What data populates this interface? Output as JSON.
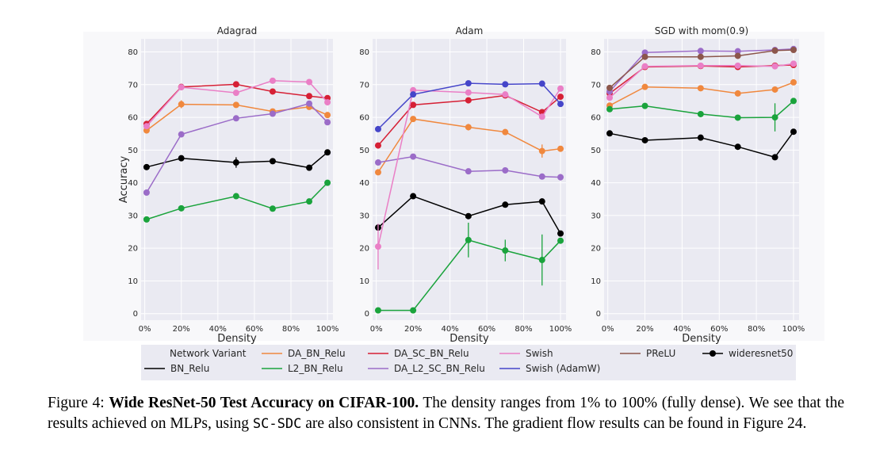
{
  "colors": {
    "BN_Relu": "#000000",
    "DA_BN_Relu": "#f0883e",
    "L2_BN_Relu": "#1aa33c",
    "DA_SC_BN_Relu": "#d62035",
    "DA_L2_SC_BN_Relu": "#9b6cc8",
    "Swish": "#ea7fc6",
    "Swish (AdamW)": "#4545c9",
    "PReLU": "#8c564b",
    "wideresnet50": "#000000"
  },
  "chart_data": [
    {
      "type": "line",
      "title": "Adagrad",
      "xlabel": "Density",
      "ylabel": "Accuracy",
      "x": [
        1,
        20,
        50,
        70,
        90,
        100
      ],
      "xticks": [
        "0%",
        "20%",
        "40%",
        "60%",
        "80%",
        "100%"
      ],
      "xtick_values": [
        0,
        20,
        40,
        60,
        80,
        100
      ],
      "yticks": [
        0,
        10,
        20,
        30,
        40,
        50,
        60,
        70,
        80
      ],
      "xlim": [
        -2,
        103
      ],
      "ylim": [
        -2,
        84
      ],
      "grid": true,
      "series": [
        {
          "name": "BN_Relu",
          "values": [
            44.8,
            47.5,
            46.2,
            46.6,
            44.6,
            49.3
          ],
          "err": [
            0,
            0,
            1.6,
            0,
            0,
            0
          ]
        },
        {
          "name": "DA_BN_Relu",
          "values": [
            56.0,
            64.0,
            63.8,
            61.8,
            63.2,
            60.7
          ],
          "err": [
            0,
            1.2,
            0,
            0,
            0,
            0
          ]
        },
        {
          "name": "L2_BN_Relu",
          "values": [
            28.8,
            32.2,
            35.9,
            32.1,
            34.3,
            40.0
          ],
          "err": [
            0,
            0,
            0,
            0,
            0,
            0
          ]
        },
        {
          "name": "DA_SC_BN_Relu",
          "values": [
            58.0,
            69.3,
            70.1,
            67.9,
            66.5,
            65.9
          ],
          "err": [
            0,
            0,
            0,
            0,
            0,
            0
          ]
        },
        {
          "name": "DA_L2_SC_BN_Relu",
          "values": [
            37.0,
            54.8,
            59.7,
            61.1,
            64.2,
            58.5
          ],
          "err": [
            0,
            0,
            0.9,
            0,
            0,
            0
          ]
        },
        {
          "name": "Swish",
          "values": [
            57.3,
            69.2,
            67.5,
            71.2,
            70.8,
            64.6
          ],
          "err": [
            0,
            0,
            0,
            0,
            0,
            0
          ]
        }
      ]
    },
    {
      "type": "line",
      "title": "Adam",
      "xlabel": "Density",
      "ylabel": "",
      "x": [
        1,
        20,
        50,
        70,
        90,
        100
      ],
      "xticks": [
        "0%",
        "20%",
        "40%",
        "60%",
        "80%",
        "100%"
      ],
      "xtick_values": [
        0,
        20,
        40,
        60,
        80,
        100
      ],
      "yticks": [
        0,
        10,
        20,
        30,
        40,
        50,
        60,
        70,
        80
      ],
      "xlim": [
        -2,
        103
      ],
      "ylim": [
        -2,
        84
      ],
      "grid": true,
      "series": [
        {
          "name": "BN_Relu",
          "values": [
            26.3,
            35.9,
            29.8,
            33.3,
            34.3,
            24.5
          ],
          "err": [
            0,
            0,
            0,
            0,
            0,
            0
          ]
        },
        {
          "name": "DA_BN_Relu",
          "values": [
            43.2,
            59.5,
            57.0,
            55.5,
            49.7,
            50.4
          ],
          "err": [
            0,
            0,
            1.0,
            0,
            2.0,
            0
          ]
        },
        {
          "name": "L2_BN_Relu",
          "values": [
            1.0,
            1.0,
            22.5,
            19.3,
            16.4,
            22.3
          ],
          "err": [
            0,
            0,
            5.3,
            3.3,
            7.8,
            0
          ]
        },
        {
          "name": "DA_SC_BN_Relu",
          "values": [
            51.4,
            63.8,
            65.2,
            66.7,
            61.6,
            66.3
          ],
          "err": [
            0,
            0,
            0,
            0,
            0,
            0
          ]
        },
        {
          "name": "DA_L2_SC_BN_Relu",
          "values": [
            46.2,
            48.0,
            43.5,
            43.8,
            41.9,
            41.7
          ],
          "err": [
            0,
            0,
            0,
            0,
            0,
            1.0
          ]
        },
        {
          "name": "Swish",
          "values": [
            20.5,
            68.3,
            67.6,
            67.0,
            60.2,
            68.8
          ],
          "err": [
            7.0,
            0,
            0,
            0,
            0,
            0
          ]
        },
        {
          "name": "Swish (AdamW)",
          "values": [
            56.4,
            67.0,
            70.4,
            70.1,
            70.3,
            64.1
          ],
          "err": [
            0,
            0,
            0,
            0,
            0,
            0
          ]
        }
      ]
    },
    {
      "type": "line",
      "title": "SGD with mom(0.9)",
      "xlabel": "Density",
      "ylabel": "",
      "x": [
        1,
        20,
        50,
        70,
        90,
        100
      ],
      "xticks": [
        "0%",
        "20%",
        "40%",
        "60%",
        "80%",
        "100%"
      ],
      "xtick_values": [
        0,
        20,
        40,
        60,
        80,
        100
      ],
      "yticks": [
        0,
        10,
        20,
        30,
        40,
        50,
        60,
        70,
        80
      ],
      "xlim": [
        -2,
        103
      ],
      "ylim": [
        -2,
        84
      ],
      "grid": true,
      "series": [
        {
          "name": "BN_Relu",
          "values": [
            55.1,
            53.0,
            53.8,
            51.0,
            47.8,
            55.6
          ],
          "err": [
            0,
            0,
            0,
            0,
            0,
            0
          ]
        },
        {
          "name": "DA_BN_Relu",
          "values": [
            63.6,
            69.3,
            68.9,
            67.3,
            68.5,
            70.7
          ],
          "err": [
            0,
            0,
            0,
            0,
            0,
            0
          ]
        },
        {
          "name": "L2_BN_Relu",
          "values": [
            62.5,
            63.5,
            61.0,
            59.9,
            60.0,
            65.0
          ],
          "err": [
            0,
            0,
            0,
            0,
            4.3,
            0
          ]
        },
        {
          "name": "DA_SC_BN_Relu",
          "values": [
            67.3,
            75.4,
            75.7,
            75.4,
            75.8,
            76.0
          ],
          "err": [
            0,
            0,
            0,
            0,
            0,
            0
          ]
        },
        {
          "name": "DA_L2_SC_BN_Relu",
          "values": [
            67.9,
            79.8,
            80.3,
            80.2,
            80.6,
            80.9
          ],
          "err": [
            0,
            0,
            0,
            0,
            0,
            0
          ]
        },
        {
          "name": "Swish",
          "values": [
            66.0,
            75.6,
            75.8,
            75.8,
            75.6,
            76.4
          ],
          "err": [
            0,
            0,
            0,
            0,
            0,
            0
          ]
        },
        {
          "name": "PReLU",
          "values": [
            69.0,
            78.5,
            78.5,
            78.8,
            80.4,
            80.6
          ],
          "err": [
            0,
            0,
            0,
            0,
            0,
            0
          ]
        }
      ]
    }
  ],
  "legend": {
    "title": "Network Variant",
    "entries": [
      {
        "name": "BN_Relu",
        "marker": false
      },
      {
        "name": "DA_BN_Relu",
        "marker": false
      },
      {
        "name": "L2_BN_Relu",
        "marker": false
      },
      {
        "name": "DA_SC_BN_Relu",
        "marker": false
      },
      {
        "name": "DA_L2_SC_BN_Relu",
        "marker": false
      },
      {
        "name": "Swish",
        "marker": false
      },
      {
        "name": "Swish (AdamW)",
        "marker": false
      },
      {
        "name": "PReLU",
        "marker": false
      },
      {
        "name": "wideresnet50",
        "marker": true
      }
    ]
  },
  "caption": {
    "prefix": "Figure 4: ",
    "bold": "Wide ResNet-50 Test Accuracy on CIFAR-100.",
    "text1": " The density ranges from 1% to 100% (fully dense). We see that the results achieved on MLPs, using ",
    "mono": "SC-SDC",
    "text2": " are also consistent in CNNs. The gradient flow results can be found in Figure 24."
  }
}
